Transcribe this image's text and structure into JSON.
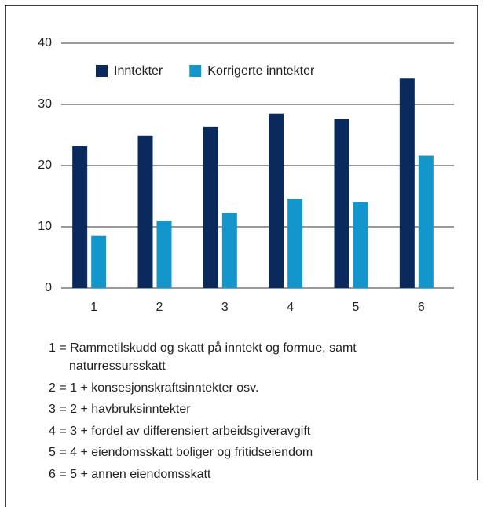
{
  "chart_data": {
    "type": "bar",
    "categories": [
      "1",
      "2",
      "3",
      "4",
      "5",
      "6"
    ],
    "series": [
      {
        "name": "Inntekter",
        "color": "#0a2a5e",
        "values": [
          23.2,
          24.9,
          26.3,
          28.5,
          27.6,
          34.2
        ]
      },
      {
        "name": "Korrigerte inntekter",
        "color": "#1296cc",
        "values": [
          8.5,
          11.0,
          12.3,
          14.6,
          14.0,
          21.6
        ]
      }
    ],
    "ylim": [
      0,
      40
    ],
    "yticks": [
      0,
      10,
      20,
      30,
      40
    ],
    "grid": true,
    "notes": [
      "1 = Rammetilskudd og skatt på inntekt og formue, samt naturressursskatt",
      "2 = 1 + konsesjonskraftsinntekter osv.",
      "3 = 2 + havbruksinntekter",
      "4 = 3 + fordel av differensiert arbeidsgiveravgift",
      "5 = 4 + eiendomsskatt boliger og fritidseiendom",
      "6 = 5 + annen eiendomsskatt"
    ]
  }
}
